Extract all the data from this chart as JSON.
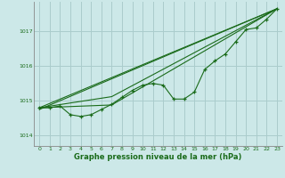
{
  "background_color": "#cce8e8",
  "grid_color": "#aacccc",
  "line_color": "#1a6b1a",
  "text_color": "#1a6b1a",
  "xlabel": "Graphe pression niveau de la mer (hPa)",
  "xlim": [
    -0.5,
    23.5
  ],
  "ylim": [
    1013.7,
    1017.85
  ],
  "yticks": [
    1014,
    1015,
    1016,
    1017
  ],
  "xticks": [
    0,
    1,
    2,
    3,
    4,
    5,
    6,
    7,
    8,
    9,
    10,
    11,
    12,
    13,
    14,
    15,
    16,
    17,
    18,
    19,
    20,
    21,
    22,
    23
  ],
  "series1_x": [
    0,
    1,
    2,
    3,
    4,
    5,
    6,
    7,
    8,
    9,
    10,
    11,
    12,
    13,
    14,
    15,
    16,
    17,
    18,
    19,
    20,
    21,
    22,
    23
  ],
  "series1_y": [
    1014.8,
    1014.8,
    1014.85,
    1014.6,
    1014.55,
    1014.6,
    1014.75,
    1014.9,
    1015.1,
    1015.3,
    1015.45,
    1015.5,
    1015.45,
    1015.05,
    1015.05,
    1015.25,
    1015.9,
    1016.15,
    1016.35,
    1016.7,
    1017.05,
    1017.1,
    1017.35,
    1017.65
  ],
  "line2_x": [
    0,
    23
  ],
  "line2_y": [
    1014.8,
    1017.65
  ],
  "line3_x": [
    0,
    23
  ],
  "line3_y": [
    1014.75,
    1017.65
  ],
  "line4_x": [
    0,
    7,
    23
  ],
  "line4_y": [
    1014.8,
    1014.88,
    1017.65
  ],
  "line5_x": [
    0,
    7,
    23
  ],
  "line5_y": [
    1014.8,
    1015.12,
    1017.65
  ]
}
